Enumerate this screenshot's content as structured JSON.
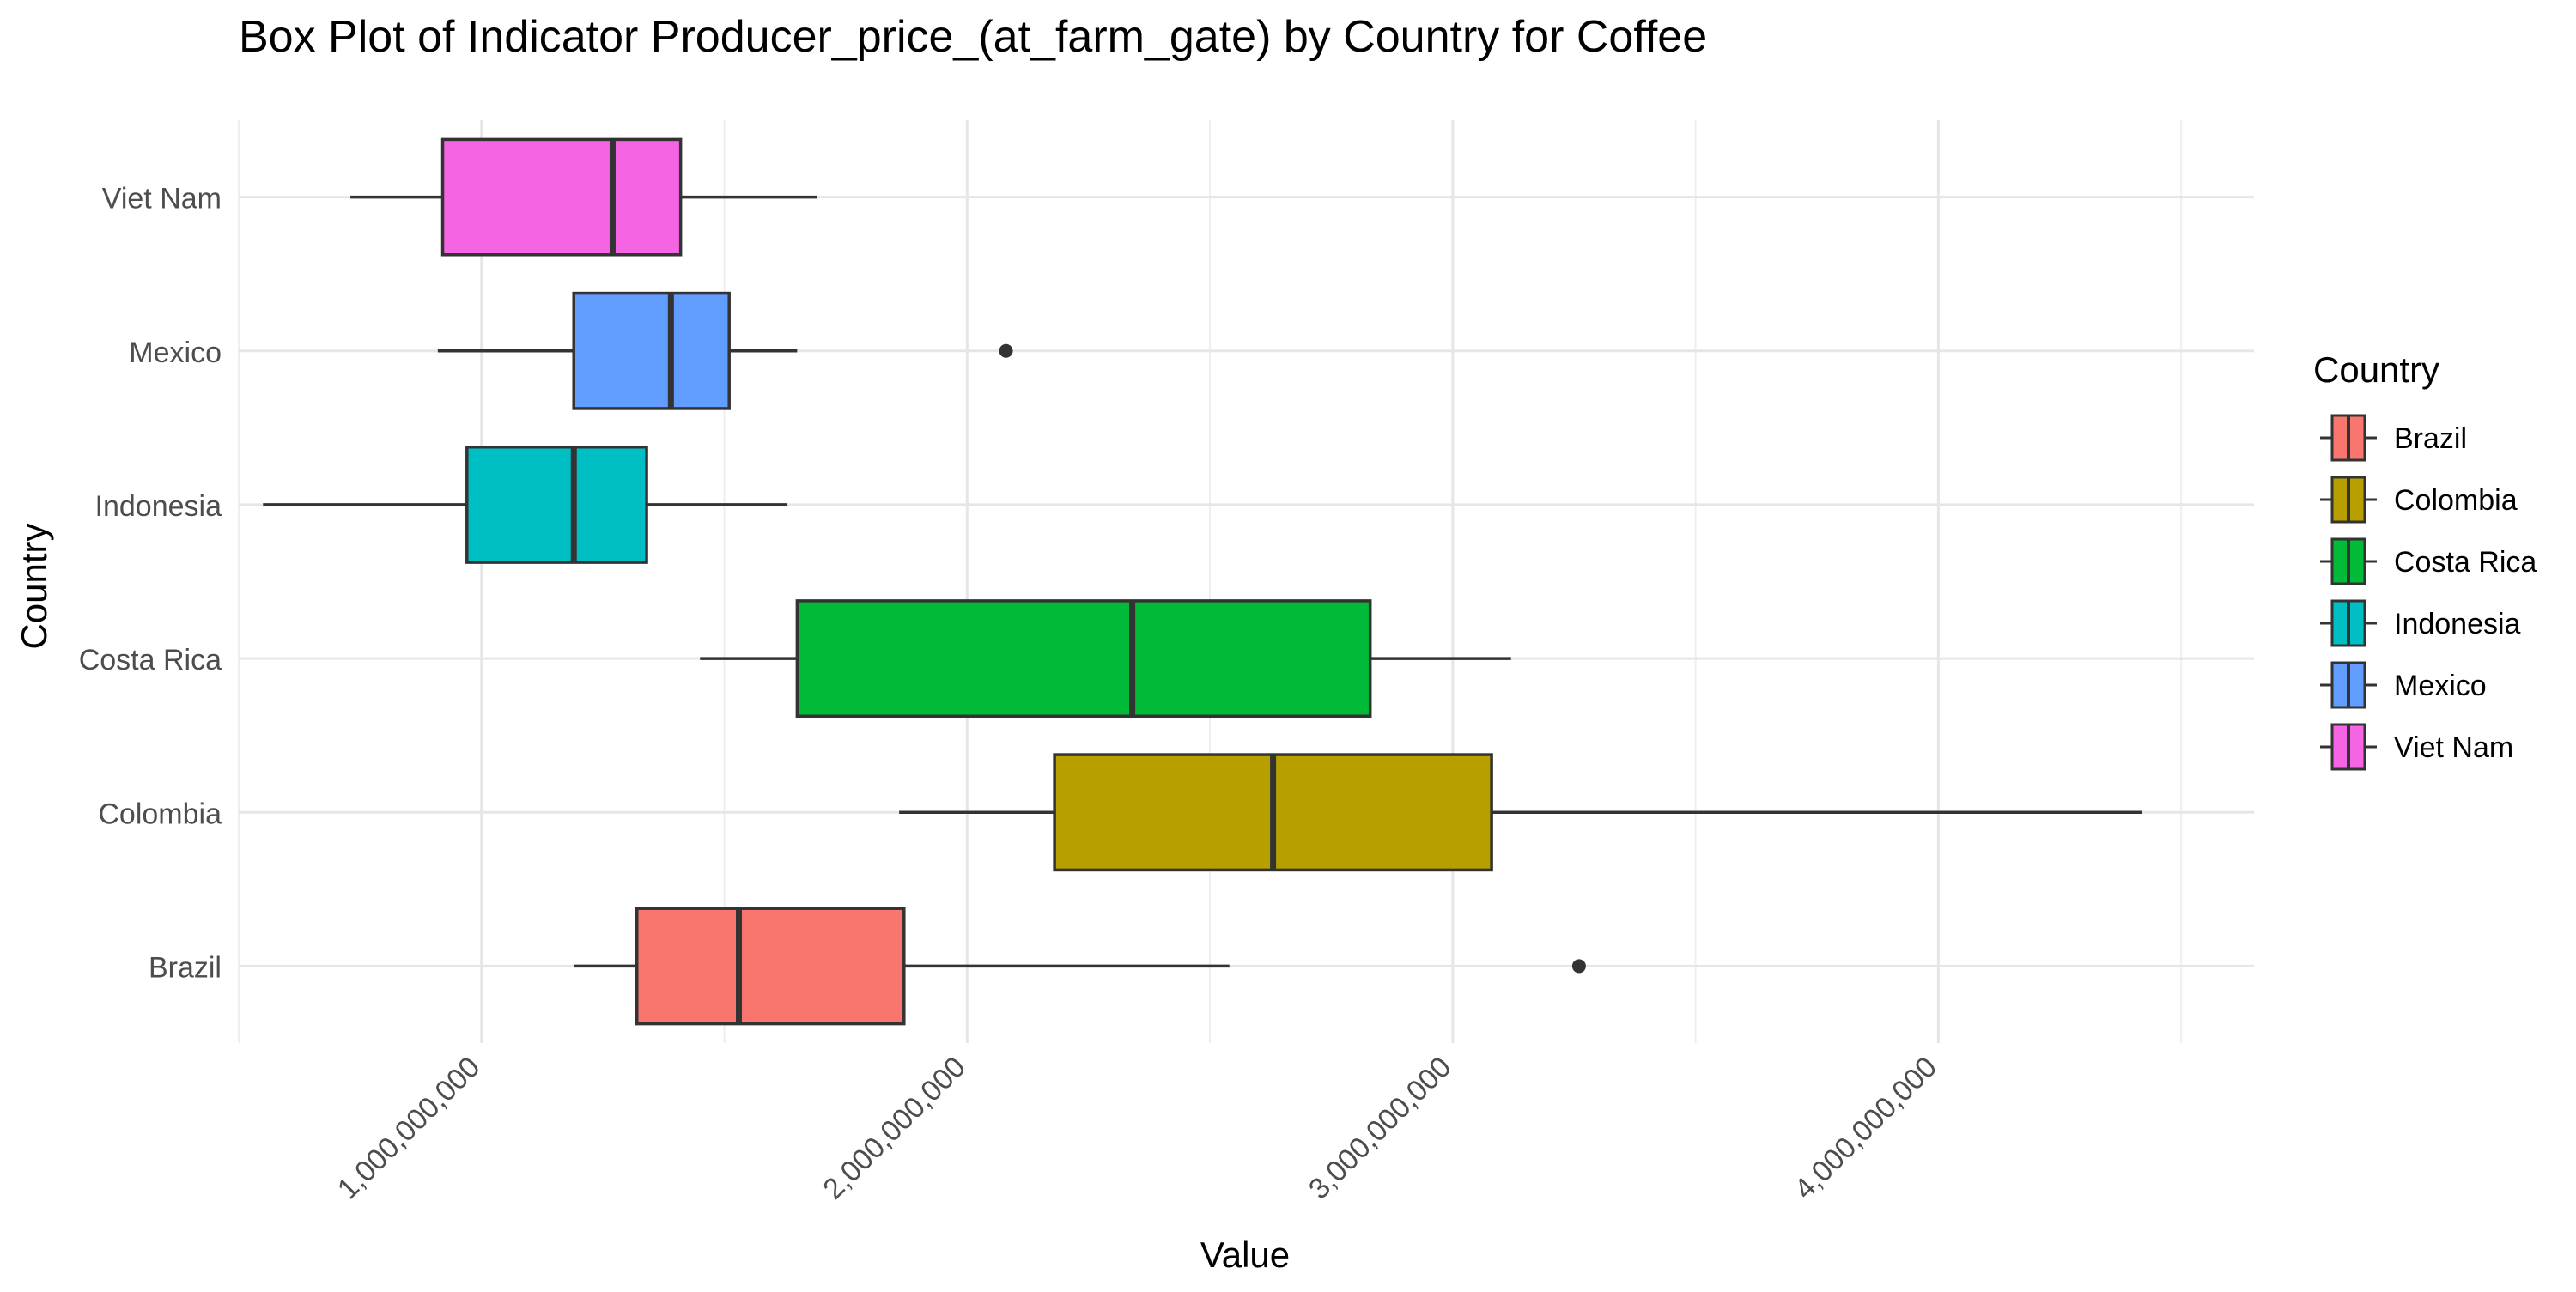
{
  "chart_data": {
    "type": "box",
    "title": "Box Plot of Indicator Producer_price_(at_farm_gate) by Country for Coffee",
    "xlabel": "Value",
    "ylabel": "Country",
    "orientation": "horizontal",
    "xlim": [
      500000000,
      4650000000
    ],
    "x_ticks": [
      1000000000,
      2000000000,
      3000000000,
      4000000000
    ],
    "x_tick_labels": [
      "1,000,000,000",
      "2,000,000,000",
      "3,000,000,000",
      "4,000,000,000"
    ],
    "grid": true,
    "legend": {
      "title": "Country",
      "position": "right",
      "entries": [
        "Brazil",
        "Colombia",
        "Costa Rica",
        "Indonesia",
        "Mexico",
        "Viet Nam"
      ]
    },
    "categories": [
      "Brazil",
      "Colombia",
      "Costa Rica",
      "Indonesia",
      "Mexico",
      "Viet Nam"
    ],
    "series": [
      {
        "name": "Brazil",
        "color": "#F8766D",
        "whisker_low": 1190000000,
        "q1": 1320000000,
        "median": 1530000000,
        "q3": 1870000000,
        "whisker_high": 2540000000,
        "outliers": [
          3260000000
        ]
      },
      {
        "name": "Colombia",
        "color": "#B79F00",
        "whisker_low": 1860000000,
        "q1": 2180000000,
        "median": 2630000000,
        "q3": 3080000000,
        "whisker_high": 4420000000,
        "outliers": []
      },
      {
        "name": "Costa Rica",
        "color": "#00BA38",
        "whisker_low": 1450000000,
        "q1": 1650000000,
        "median": 2340000000,
        "q3": 2830000000,
        "whisker_high": 3120000000,
        "outliers": []
      },
      {
        "name": "Indonesia",
        "color": "#00BFC4",
        "whisker_low": 550000000,
        "q1": 970000000,
        "median": 1190000000,
        "q3": 1340000000,
        "whisker_high": 1630000000,
        "outliers": []
      },
      {
        "name": "Mexico",
        "color": "#619CFF",
        "whisker_low": 910000000,
        "q1": 1190000000,
        "median": 1390000000,
        "q3": 1510000000,
        "whisker_high": 1650000000,
        "outliers": [
          2080000000
        ]
      },
      {
        "name": "Viet Nam",
        "color": "#F564E3",
        "whisker_low": 730000000,
        "q1": 920000000,
        "median": 1270000000,
        "q3": 1410000000,
        "whisker_high": 1690000000,
        "outliers": []
      }
    ]
  }
}
